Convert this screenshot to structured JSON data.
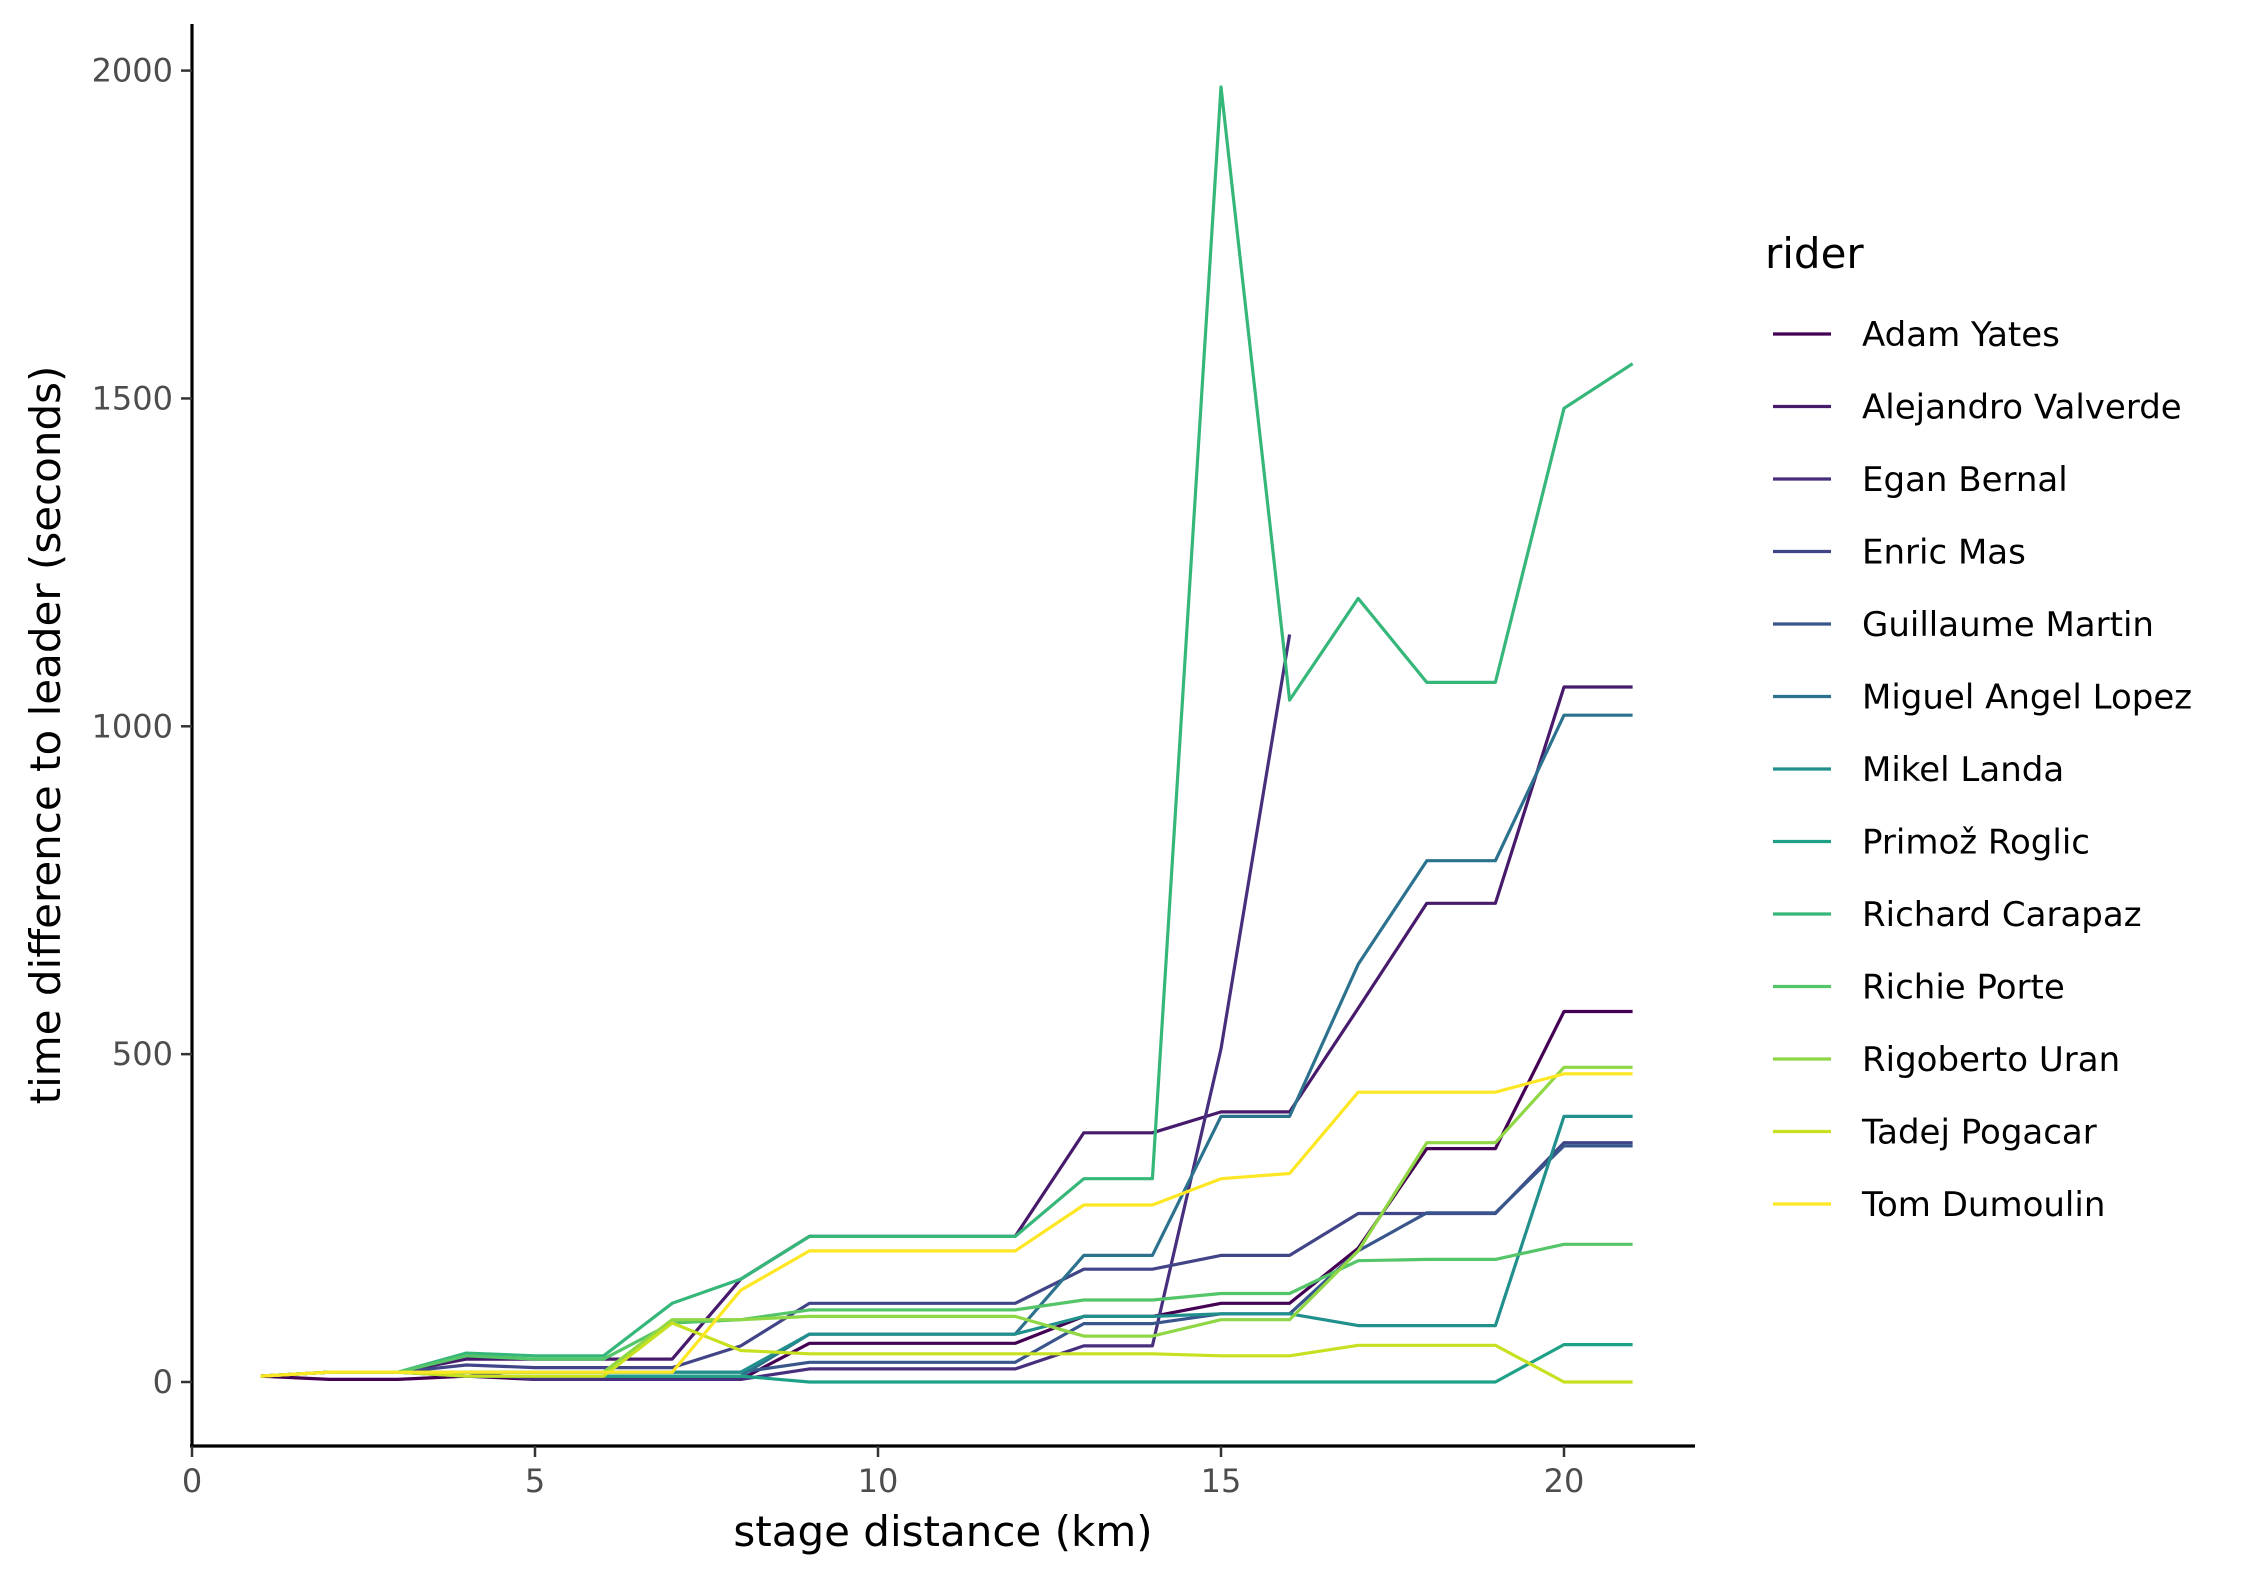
{
  "chart_data": {
    "type": "line",
    "xlabel": "stage distance (km)",
    "ylabel": "time difference to leader (seconds)",
    "xlim": [
      0,
      22
    ],
    "ylim": [
      -100,
      2070
    ],
    "x_ticks": [
      0,
      5,
      10,
      15,
      20
    ],
    "y_ticks": [
      0,
      500,
      1000,
      1500,
      2000
    ],
    "x_tick_labels": [
      "0",
      "5",
      "10",
      "15",
      "20"
    ],
    "y_tick_labels": [
      "0",
      "500",
      "1000",
      "1500",
      "2000"
    ],
    "grid": false,
    "legend": {
      "title": "rider",
      "position": "right"
    },
    "series": [
      {
        "name": "Adam Yates",
        "color": "#440154",
        "x": [
          1,
          2,
          3,
          4,
          5,
          6,
          7,
          8,
          9,
          10,
          11,
          12,
          13,
          14,
          15,
          16,
          17,
          18,
          19,
          20,
          21
        ],
        "values": [
          9,
          4,
          4,
          9,
          4,
          4,
          4,
          4,
          59,
          59,
          59,
          59,
          100,
          100,
          120,
          120,
          204,
          356,
          356,
          565,
          565
        ]
      },
      {
        "name": "Alejandro Valverde",
        "color": "#481A6C",
        "x": [
          1,
          2,
          3,
          4,
          5,
          6,
          7,
          8,
          9,
          10,
          11,
          12,
          13,
          14,
          15,
          16,
          17,
          18,
          19,
          20,
          21
        ],
        "values": [
          9,
          15,
          15,
          35,
          35,
          35,
          35,
          157,
          222,
          222,
          222,
          222,
          380,
          380,
          412,
          412,
          570,
          730,
          730,
          1060,
          1060
        ]
      },
      {
        "name": "Egan Bernal",
        "color": "#472F7D",
        "x": [
          1,
          2,
          3,
          4,
          5,
          6,
          7,
          8,
          9,
          10,
          11,
          12,
          13,
          14,
          15,
          16
        ],
        "values": [
          9,
          15,
          15,
          15,
          4,
          4,
          4,
          4,
          20,
          20,
          20,
          20,
          55,
          55,
          508,
          1140
        ]
      },
      {
        "name": "Enric Mas",
        "color": "#414487",
        "x": [
          1,
          2,
          3,
          4,
          5,
          6,
          7,
          8,
          9,
          10,
          11,
          12,
          13,
          14,
          15,
          16,
          17,
          18,
          19,
          20,
          21
        ],
        "values": [
          9,
          15,
          15,
          26,
          22,
          22,
          22,
          55,
          120,
          120,
          120,
          120,
          172,
          172,
          193,
          193,
          257,
          257,
          257,
          365,
          365
        ]
      },
      {
        "name": "Guillaume Martin",
        "color": "#39568C",
        "x": [
          1,
          2,
          3,
          4,
          5,
          6,
          7,
          8,
          9,
          10,
          11,
          12,
          13,
          14,
          15,
          16,
          17,
          18,
          19,
          20,
          21
        ],
        "values": [
          9,
          15,
          15,
          15,
          15,
          15,
          15,
          15,
          30,
          30,
          30,
          30,
          89,
          89,
          104,
          104,
          200,
          258,
          258,
          360,
          360
        ]
      },
      {
        "name": "Miguel Angel Lopez",
        "color": "#2C728E",
        "x": [
          1,
          2,
          3,
          4,
          5,
          6,
          7,
          8,
          9,
          10,
          11,
          12,
          13,
          14,
          15,
          16,
          17,
          18,
          19,
          20,
          21
        ],
        "values": [
          9,
          15,
          15,
          9,
          9,
          9,
          9,
          9,
          73,
          73,
          73,
          73,
          193,
          193,
          405,
          405,
          637,
          795,
          795,
          1017,
          1017
        ]
      },
      {
        "name": "Mikel Landa",
        "color": "#21908C",
        "x": [
          1,
          2,
          3,
          4,
          5,
          6,
          7,
          8,
          9,
          10,
          11,
          12,
          13,
          14,
          15,
          16,
          17,
          18,
          19,
          20,
          21
        ],
        "values": [
          9,
          15,
          15,
          15,
          15,
          15,
          15,
          15,
          73,
          73,
          73,
          73,
          100,
          100,
          104,
          104,
          86,
          86,
          86,
          405,
          405
        ]
      },
      {
        "name": "Primož Roglic",
        "color": "#1FA187",
        "x": [
          1,
          2,
          3,
          4,
          5,
          6,
          7,
          8,
          9,
          10,
          11,
          12,
          13,
          14,
          15,
          16,
          17,
          18,
          19,
          20,
          21
        ],
        "values": [
          9,
          15,
          15,
          9,
          9,
          9,
          9,
          9,
          0,
          0,
          0,
          0,
          0,
          0,
          0,
          0,
          0,
          0,
          0,
          57,
          57
        ]
      },
      {
        "name": "Richard Carapaz",
        "color": "#35B779",
        "x": [
          1,
          2,
          3,
          4,
          5,
          6,
          7,
          8,
          9,
          10,
          11,
          12,
          13,
          14,
          15,
          16,
          17,
          18,
          19,
          20,
          21
        ],
        "values": [
          9,
          15,
          15,
          44,
          40,
          40,
          120,
          157,
          222,
          222,
          222,
          222,
          310,
          310,
          1975,
          1040,
          1195,
          1067,
          1067,
          1485,
          1553
        ]
      },
      {
        "name": "Richie Porte",
        "color": "#54C568",
        "x": [
          1,
          2,
          3,
          4,
          5,
          6,
          7,
          8,
          9,
          10,
          11,
          12,
          13,
          14,
          15,
          16,
          17,
          18,
          19,
          20,
          21
        ],
        "values": [
          9,
          15,
          15,
          40,
          35,
          35,
          90,
          95,
          110,
          110,
          110,
          110,
          125,
          125,
          135,
          135,
          185,
          187,
          187,
          210,
          210
        ]
      },
      {
        "name": "Rigoberto Uran",
        "color": "#8FD744",
        "x": [
          1,
          2,
          3,
          4,
          5,
          6,
          7,
          8,
          9,
          10,
          11,
          12,
          13,
          14,
          15,
          16,
          17,
          18,
          19,
          20,
          21
        ],
        "values": [
          9,
          15,
          15,
          15,
          15,
          15,
          95,
          95,
          100,
          100,
          100,
          100,
          70,
          70,
          95,
          95,
          200,
          365,
          365,
          480,
          480
        ]
      },
      {
        "name": "Tadej Pogacar",
        "color": "#C7E020",
        "x": [
          1,
          2,
          3,
          4,
          5,
          6,
          7,
          8,
          9,
          10,
          11,
          12,
          13,
          14,
          15,
          16,
          17,
          18,
          19,
          20,
          21
        ],
        "values": [
          9,
          15,
          15,
          9,
          9,
          9,
          90,
          48,
          43,
          43,
          43,
          43,
          43,
          43,
          40,
          40,
          56,
          56,
          56,
          0,
          0
        ]
      },
      {
        "name": "Tom Dumoulin",
        "color": "#FDE725",
        "x": [
          1,
          2,
          3,
          4,
          5,
          6,
          7,
          8,
          9,
          10,
          11,
          12,
          13,
          14,
          15,
          16,
          17,
          18,
          19,
          20,
          21
        ],
        "values": [
          9,
          15,
          15,
          15,
          15,
          15,
          15,
          140,
          200,
          200,
          200,
          200,
          270,
          270,
          310,
          318,
          442,
          442,
          442,
          470,
          470
        ]
      }
    ]
  }
}
